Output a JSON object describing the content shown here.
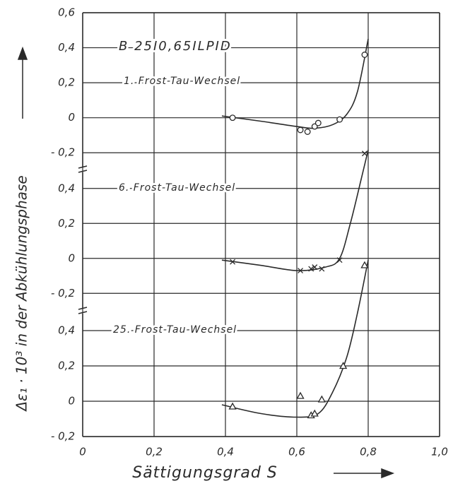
{
  "chart_data": [
    {
      "type": "line",
      "annotation": "B 25I0,65ILPID",
      "subannotation": "1. Frost-Tau-Wechsel",
      "ylabel": "Δε₁ · 10³ in der Abkühlungsphase",
      "ylim": [
        -0.3,
        0.6
      ],
      "yticks": [
        {
          "value": -0.2,
          "label": "- 0,2"
        },
        0,
        {
          "value": 0.2,
          "label": "0,2"
        },
        {
          "value": 0.4,
          "label": "0,4"
        },
        {
          "value": 0.6,
          "label": "0,6"
        }
      ],
      "series": [
        {
          "marker": "circle",
          "color": "#2a2a2a",
          "x": [
            0.42,
            0.61,
            0.63,
            0.65,
            0.66,
            0.72,
            0.79
          ],
          "values": [
            0,
            -0.07,
            -0.08,
            -0.05,
            -0.03,
            -0.01,
            0.36
          ]
        },
        {
          "marker": "none",
          "color": "#2a2a2a",
          "x": [
            0.39,
            0.5,
            0.6,
            0.65,
            0.7,
            0.74,
            0.77,
            0.8
          ],
          "values": [
            0.01,
            -0.02,
            -0.05,
            -0.06,
            -0.04,
            0.02,
            0.15,
            0.45
          ]
        }
      ]
    },
    {
      "type": "line",
      "subannotation": "6. Frost-Tau-Wechsel",
      "ylim": [
        -0.3,
        0.5
      ],
      "yticks": [
        {
          "value": -0.2,
          "label": "- 0,2"
        },
        0,
        {
          "value": 0.2,
          "label": "0,2"
        },
        {
          "value": 0.4,
          "label": "0,4"
        }
      ],
      "series": [
        {
          "marker": "cross",
          "color": "#2a2a2a",
          "x": [
            0.42,
            0.61,
            0.64,
            0.65,
            0.67,
            0.72,
            0.79
          ],
          "values": [
            -0.02,
            -0.07,
            -0.06,
            -0.05,
            -0.06,
            -0.01,
            0.6
          ]
        },
        {
          "marker": "none",
          "color": "#2a2a2a",
          "x": [
            0.39,
            0.5,
            0.6,
            0.68,
            0.72,
            0.75,
            0.78,
            0.8
          ],
          "values": [
            -0.01,
            -0.04,
            -0.07,
            -0.05,
            0.0,
            0.2,
            0.45,
            0.62
          ]
        }
      ]
    },
    {
      "type": "line",
      "subannotation": "25. Frost-Tau-Wechsel",
      "xlabel": "Sättigungsgrad S",
      "xlim": [
        0,
        1.0
      ],
      "xticks": [
        0,
        {
          "value": 0.2,
          "label": "0,2"
        },
        {
          "value": 0.4,
          "label": "0,4"
        },
        {
          "value": 0.6,
          "label": "0,6"
        },
        {
          "value": 0.8,
          "label": "0,8"
        },
        {
          "value": 1.0,
          "label": "1,0"
        }
      ],
      "ylim": [
        -0.2,
        0.5
      ],
      "yticks": [
        {
          "value": -0.2,
          "label": "- 0,2"
        },
        0,
        {
          "value": 0.2,
          "label": "0,2"
        },
        {
          "value": 0.4,
          "label": "0,4"
        }
      ],
      "series": [
        {
          "marker": "triangle",
          "color": "#2a2a2a",
          "x": [
            0.42,
            0.61,
            0.64,
            0.65,
            0.67,
            0.73,
            0.79
          ],
          "values": [
            -0.03,
            0.03,
            -0.08,
            -0.07,
            0.01,
            0.2,
            0.77
          ]
        },
        {
          "marker": "none",
          "color": "#2a2a2a",
          "x": [
            0.39,
            0.5,
            0.6,
            0.66,
            0.7,
            0.74,
            0.77,
            0.8
          ],
          "values": [
            -0.02,
            -0.07,
            -0.09,
            -0.07,
            0.05,
            0.25,
            0.5,
            0.8
          ]
        }
      ]
    }
  ]
}
